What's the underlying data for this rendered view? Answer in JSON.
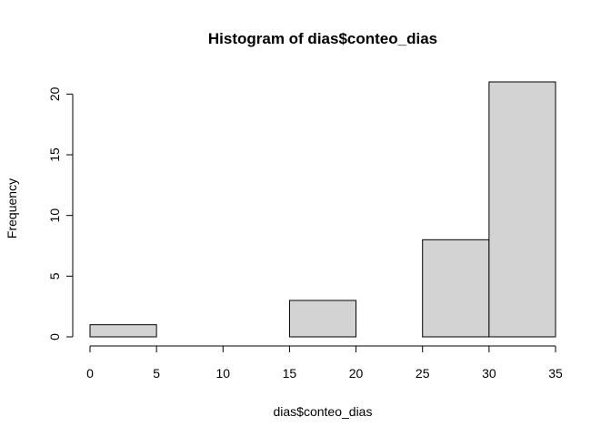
{
  "chart_data": {
    "type": "bar",
    "title": "Histogram of dias$conteo_dias",
    "xlabel": "dias$conteo_dias",
    "ylabel": "Frequency",
    "bins": [
      {
        "from": 0,
        "to": 5,
        "count": 1
      },
      {
        "from": 5,
        "to": 10,
        "count": 0
      },
      {
        "from": 10,
        "to": 15,
        "count": 0
      },
      {
        "from": 15,
        "to": 20,
        "count": 3
      },
      {
        "from": 20,
        "to": 25,
        "count": 0
      },
      {
        "from": 25,
        "to": 30,
        "count": 8
      },
      {
        "from": 30,
        "to": 35,
        "count": 21
      }
    ],
    "xticks": [
      0,
      5,
      10,
      15,
      20,
      25,
      30,
      35
    ],
    "yticks": [
      0,
      5,
      10,
      15,
      20
    ],
    "xlim": [
      0,
      35
    ],
    "ylim": [
      0,
      21
    ],
    "bar_fill": "#d3d3d3",
    "bar_stroke": "#000000",
    "grid": false,
    "legend": "none"
  }
}
